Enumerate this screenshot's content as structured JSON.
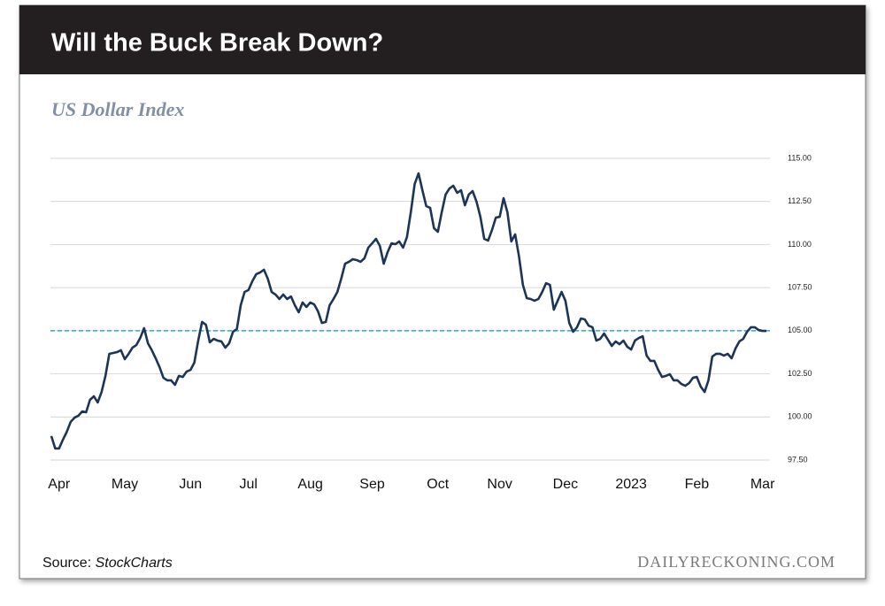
{
  "chart_data": {
    "type": "line",
    "title": "Will the Buck Break Down?",
    "subtitle": "US Dollar Index",
    "source_prefix": "Source:",
    "source": "StockCharts",
    "watermark": "DAILYRECKONING.COM",
    "color": "#1c3556",
    "reference_line": {
      "value": 105,
      "color": "#2ba6df"
    },
    "grid": true,
    "ylim": [
      97.5,
      115
    ],
    "yticks": [
      {
        "value": 97.5,
        "label": "97.50"
      },
      {
        "value": 100,
        "label": "100.00"
      },
      {
        "value": 102.5,
        "label": "102.50"
      },
      {
        "value": 105,
        "label": "105.00"
      },
      {
        "value": 107.5,
        "label": "107.50"
      },
      {
        "value": 110,
        "label": "110.00"
      },
      {
        "value": 112.5,
        "label": "112.50"
      },
      {
        "value": 115,
        "label": "115.00"
      }
    ],
    "categories": [
      null,
      null,
      "Apr",
      null,
      null,
      null,
      null,
      null,
      null,
      null,
      null,
      null,
      null,
      null,
      null,
      null,
      null,
      null,
      null,
      "May",
      null,
      null,
      null,
      null,
      null,
      null,
      null,
      null,
      null,
      null,
      null,
      null,
      null,
      null,
      null,
      null,
      "Jun",
      null,
      null,
      null,
      null,
      null,
      null,
      null,
      null,
      null,
      null,
      null,
      null,
      null,
      null,
      "Jul",
      null,
      null,
      null,
      null,
      null,
      null,
      null,
      null,
      null,
      null,
      null,
      null,
      null,
      null,
      null,
      "Aug",
      null,
      null,
      null,
      null,
      null,
      null,
      null,
      null,
      null,
      null,
      null,
      null,
      null,
      null,
      null,
      "Sep",
      null,
      null,
      null,
      null,
      null,
      null,
      null,
      null,
      null,
      null,
      null,
      null,
      null,
      null,
      null,
      null,
      "Oct",
      null,
      null,
      null,
      null,
      null,
      null,
      null,
      null,
      null,
      null,
      null,
      null,
      null,
      null,
      null,
      "Nov",
      null,
      null,
      null,
      null,
      null,
      null,
      null,
      null,
      null,
      null,
      null,
      null,
      null,
      null,
      null,
      null,
      "Dec",
      null,
      null,
      null,
      null,
      null,
      null,
      null,
      null,
      null,
      null,
      null,
      null,
      null,
      null,
      null,
      null,
      "2023",
      null,
      null,
      null,
      null,
      null,
      null,
      null,
      null,
      null,
      null,
      null,
      null,
      null,
      null,
      null,
      null,
      "Feb",
      null,
      null,
      null,
      null,
      null,
      null,
      null,
      null,
      null,
      null,
      null,
      null,
      null,
      null,
      null,
      null,
      "Mar",
      null
    ],
    "values": [
      98.89,
      98.17,
      98.17,
      98.68,
      99.14,
      99.71,
      99.96,
      100.07,
      100.32,
      100.27,
      100.99,
      101.2,
      100.84,
      101.45,
      102.38,
      103.66,
      103.71,
      103.76,
      103.87,
      103.35,
      103.66,
      104.02,
      104.17,
      104.58,
      105.15,
      104.27,
      103.87,
      103.4,
      102.89,
      102.27,
      102.12,
      102.12,
      101.86,
      102.38,
      102.32,
      102.63,
      102.73,
      103.15,
      104.43,
      105.51,
      105.35,
      104.33,
      104.53,
      104.43,
      104.38,
      104.02,
      104.27,
      104.94,
      105.1,
      106.48,
      107.25,
      107.36,
      107.87,
      108.28,
      108.38,
      108.54,
      108.02,
      107.25,
      107.1,
      106.84,
      107.1,
      106.84,
      106.99,
      106.48,
      106.07,
      106.64,
      106.38,
      106.64,
      106.53,
      106.12,
      105.45,
      105.51,
      106.48,
      106.84,
      107.25,
      108.02,
      108.89,
      109.0,
      109.15,
      109.1,
      109.0,
      109.2,
      109.82,
      110.07,
      110.33,
      109.92,
      108.89,
      109.56,
      110.07,
      110.02,
      110.18,
      109.82,
      110.43,
      111.87,
      113.51,
      114.13,
      113.15,
      112.23,
      112.13,
      110.95,
      110.74,
      111.87,
      112.9,
      113.25,
      113.41,
      113.0,
      113.15,
      112.28,
      112.9,
      113.1,
      112.49,
      111.61,
      110.33,
      110.23,
      110.84,
      111.56,
      111.61,
      112.69,
      111.87,
      110.18,
      110.59,
      109.3,
      107.66,
      106.89,
      106.84,
      106.74,
      106.84,
      107.25,
      107.76,
      107.66,
      106.22,
      106.74,
      107.25,
      106.74,
      105.45,
      104.94,
      105.2,
      105.71,
      105.66,
      105.3,
      105.2,
      104.43,
      104.53,
      104.84,
      104.48,
      104.12,
      104.38,
      104.22,
      104.43,
      104.07,
      103.91,
      104.43,
      104.58,
      104.68,
      103.56,
      103.25,
      103.25,
      102.73,
      102.32,
      102.38,
      102.48,
      102.12,
      102.12,
      101.91,
      101.81,
      101.96,
      102.27,
      102.32,
      101.76,
      101.45,
      102.12,
      103.5,
      103.66,
      103.66,
      103.56,
      103.66,
      103.4,
      103.97,
      104.38,
      104.53,
      104.94,
      105.2,
      105.2,
      105.04,
      104.99,
      104.99
    ]
  }
}
